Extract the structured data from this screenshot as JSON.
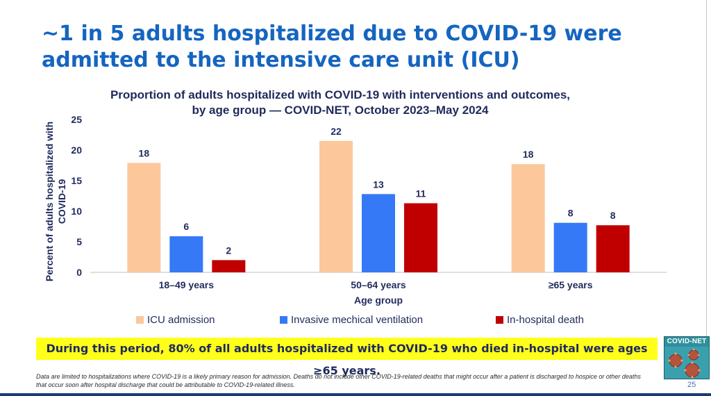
{
  "slide": {
    "title": "~1 in 5 adults hospitalized due to COVID-19 were admitted to the intensive care unit (ICU)",
    "callout": "During this period, 80% of all adults hospitalized with COVID-19 who died in-hospital were ages ≥65 years.",
    "footnote": "Data are limited to hospitalizations where COVID-19 is a likely primary reason for admission. Deaths do not include other COVID-19-related deaths that might occur after a patient is discharged to hospice or other deaths that occur soon after hospital discharge that could be attributable to COVID-19-related illness.",
    "page_number": "25",
    "logo_text": "COVID-NET"
  },
  "chart_data": {
    "type": "bar",
    "title_line1": "Proportion of adults hospitalized with COVID-19 with interventions and outcomes,",
    "title_line2": "by age group — COVID-NET, October 2023–May 2024",
    "xlabel": "Age group",
    "ylabel_line1": "Percent of adults hospitalized with",
    "ylabel_line2": "COVID-19",
    "ylim": [
      0,
      25
    ],
    "yticks": [
      0,
      5,
      10,
      15,
      20,
      25
    ],
    "categories": [
      "18–49 years",
      "50–64 years",
      "≥65 years"
    ],
    "series": [
      {
        "name": "ICU admission",
        "color": "#fcc89b",
        "values": [
          17.9,
          21.5,
          17.7
        ],
        "labels": [
          "18",
          "22",
          "18"
        ]
      },
      {
        "name": "Invasive mechical ventilation",
        "color": "#3579f6",
        "values": [
          5.9,
          12.8,
          8.1
        ],
        "labels": [
          "6",
          "13",
          "8"
        ]
      },
      {
        "name": "In-hospital death",
        "color": "#c00000",
        "values": [
          2.0,
          11.3,
          7.7
        ],
        "labels": [
          "2",
          "11",
          "8"
        ]
      }
    ]
  }
}
